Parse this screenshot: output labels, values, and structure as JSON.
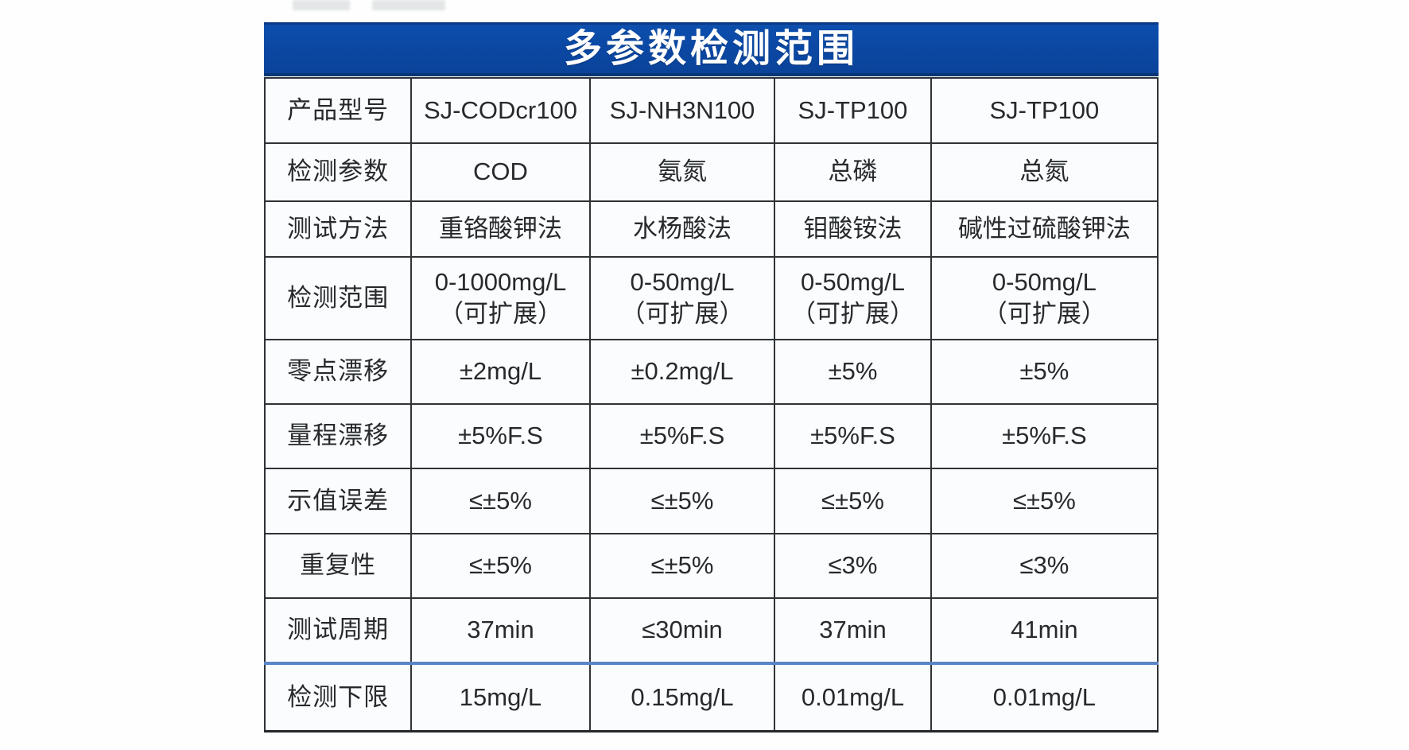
{
  "title": {
    "text": "多参数检测范围"
  },
  "colors": {
    "banner_blue": "#0b48a4",
    "accent_line_blue": "#5b85c4",
    "grid_line": "#2e3338",
    "title_text": "#ffffff",
    "body_text": "#272a2d"
  },
  "table": {
    "rows": [
      {
        "label": "产品型号",
        "values": [
          "SJ-CODcr100",
          "SJ-NH3N100",
          "SJ-TP100",
          "SJ-TP100"
        ]
      },
      {
        "label": "检测参数",
        "values": [
          "COD",
          "氨氮",
          "总磷",
          "总氮"
        ]
      },
      {
        "label": "测试方法",
        "values": [
          "重铬酸钾法",
          "水杨酸法",
          "钼酸铵法",
          "碱性过硫酸钾法"
        ]
      },
      {
        "label": "检测范围",
        "values": [
          "0-1000mg/L\n（可扩展）",
          "0-50mg/L\n（可扩展）",
          "0-50mg/L\n（可扩展）",
          "0-50mg/L\n（可扩展）"
        ]
      },
      {
        "label": "零点漂移",
        "values": [
          "±2mg/L",
          "±0.2mg/L",
          "±5%",
          "±5%"
        ]
      },
      {
        "label": "量程漂移",
        "values": [
          "±5%F.S",
          "±5%F.S",
          "±5%F.S",
          "±5%F.S"
        ]
      },
      {
        "label": "示值误差",
        "values": [
          "≤±5%",
          "≤±5%",
          "≤±5%",
          "≤±5%"
        ]
      },
      {
        "label": "重复性",
        "values": [
          "≤±5%",
          "≤±5%",
          "≤3%",
          "≤3%"
        ]
      },
      {
        "label": "测试周期",
        "values": [
          "37min",
          "≤30min",
          "37min",
          "41min"
        ]
      },
      {
        "label": "检测下限",
        "values": [
          "15mg/L",
          "0.15mg/L",
          "0.01mg/L",
          "0.01mg/L"
        ]
      }
    ]
  }
}
